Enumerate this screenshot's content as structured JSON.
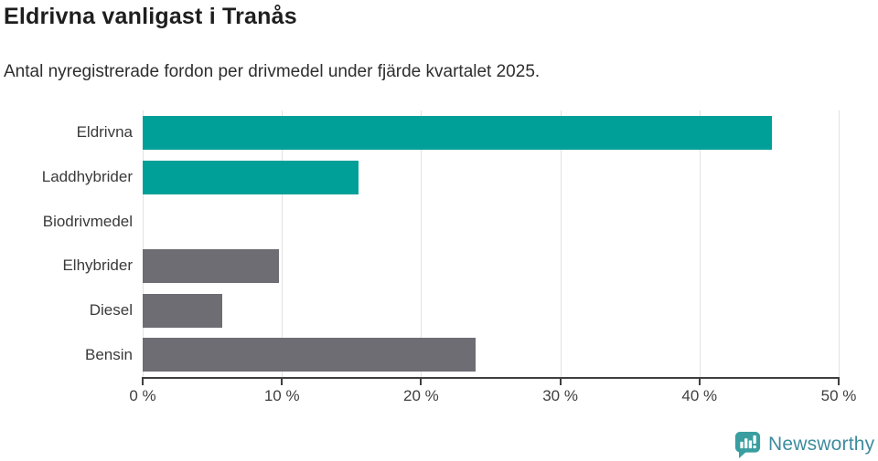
{
  "header": {
    "title": "Eldrivna vanligast i Tranås",
    "subtitle": "Antal nyregistrerade fordon per drivmedel under fjärde kvartalet 2025."
  },
  "chart_data": {
    "type": "bar",
    "orientation": "horizontal",
    "title": "Eldrivna vanligast i Tranås",
    "subtitle": "Antal nyregistrerade fordon per drivmedel under fjärde kvartalet 2025.",
    "categories": [
      "Eldrivna",
      "Laddhybrider",
      "Biodrivmedel",
      "Elhybrider",
      "Diesel",
      "Bensin"
    ],
    "values": [
      45.2,
      15.5,
      0,
      9.8,
      5.7,
      23.9
    ],
    "unit": "%",
    "bar_colors": [
      "#00a099",
      "#00a099",
      "#6d6d73",
      "#6d6d73",
      "#6d6d73",
      "#6d6d73"
    ],
    "highlight_color": "#00a099",
    "base_color": "#6d6d73",
    "xlim": [
      0,
      50
    ],
    "x_ticks": [
      0,
      10,
      20,
      30,
      40,
      50
    ],
    "x_tick_labels": [
      "0 %",
      "10 %",
      "20 %",
      "30 %",
      "40 %",
      "50 %"
    ],
    "grid": true,
    "gridline_color": "#e2e2e2",
    "axis_color": "#3f3f3f",
    "legend": "none"
  },
  "footer": {
    "brand": "Newsworthy",
    "brand_text_color": "#3e8c9e",
    "logo_color": "#3a9ea0"
  }
}
